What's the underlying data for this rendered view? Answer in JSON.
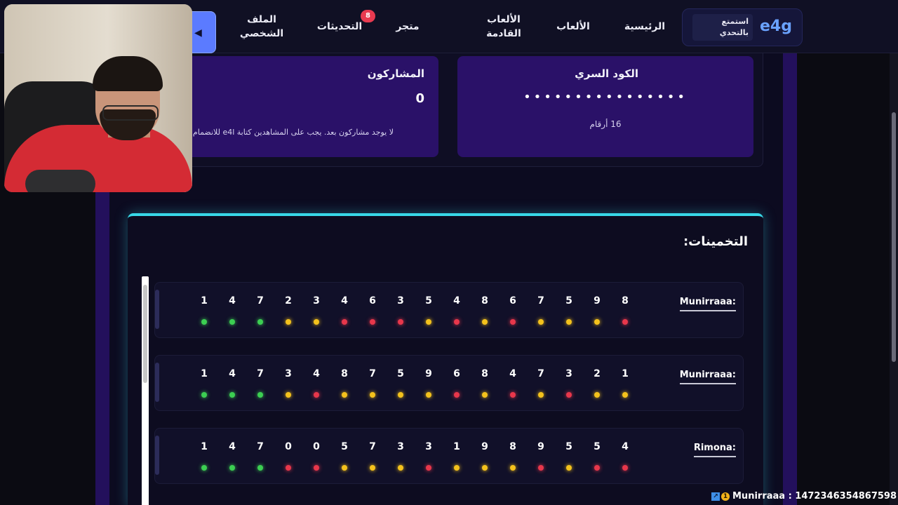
{
  "nav": {
    "brand": "e4g",
    "brand_tag": "استمتع بالتحدي",
    "home": "الرئيسية",
    "games": "الألعاب",
    "upcoming": "الألعاب القادمة",
    "store": "متجر",
    "challenges": "التحديثات",
    "challenges_badge": "8",
    "profile": "الملف الشخصي",
    "announce_icon": "megaphone-icon"
  },
  "secret": {
    "title": "الكود السري",
    "masked": "••••••••••••••••",
    "digits_label": "16 أرقام"
  },
  "participants": {
    "title": "المشاركون",
    "count": "0",
    "note": "لا يوجد مشاركون بعد. يجب على المشاهدين كتابة e4l للانضمام"
  },
  "guesses": {
    "heading": "التخمينات:",
    "rows": [
      {
        "name": "Munirraaa:",
        "digits": [
          "1",
          "4",
          "7",
          "2",
          "3",
          "4",
          "6",
          "3",
          "5",
          "4",
          "8",
          "6",
          "7",
          "5",
          "9",
          "8"
        ],
        "status": [
          "green",
          "green",
          "green",
          "yellow",
          "yellow",
          "red",
          "red",
          "red",
          "yellow",
          "red",
          "yellow",
          "red",
          "yellow",
          "yellow",
          "yellow",
          "red"
        ]
      },
      {
        "name": "Munirraaa:",
        "digits": [
          "1",
          "4",
          "7",
          "3",
          "4",
          "8",
          "7",
          "5",
          "9",
          "6",
          "8",
          "4",
          "7",
          "3",
          "2",
          "1"
        ],
        "status": [
          "green",
          "green",
          "green",
          "yellow",
          "red",
          "yellow",
          "yellow",
          "yellow",
          "yellow",
          "red",
          "yellow",
          "red",
          "yellow",
          "red",
          "yellow",
          "yellow"
        ]
      },
      {
        "name": "Rimona:",
        "digits": [
          "1",
          "4",
          "7",
          "0",
          "0",
          "5",
          "7",
          "3",
          "3",
          "1",
          "9",
          "8",
          "9",
          "5",
          "5",
          "4"
        ],
        "status": [
          "green",
          "green",
          "green",
          "red",
          "red",
          "yellow",
          "yellow",
          "yellow",
          "red",
          "yellow",
          "yellow",
          "yellow",
          "red",
          "yellow",
          "red",
          "red"
        ]
      }
    ]
  },
  "ticker": {
    "text": "Munirraaa : 1472346354867598"
  }
}
